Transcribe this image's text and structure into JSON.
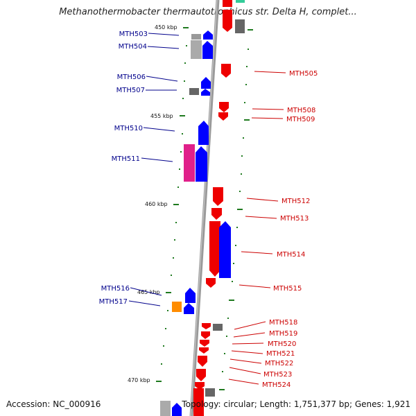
{
  "title": "Methanothermobacter thermautotrophicus str. Delta H, complet...",
  "accession": "Accession: NC_000916",
  "summary": "Topology: circular; Length: 1,751,377 bp; Genes: 1,921",
  "colors": {
    "forward": "#0000ff",
    "reverse": "#ff0000",
    "forward_label": "#00008b",
    "reverse_label": "#cc0000",
    "tick": "#1f7a1f",
    "backbone": "#808080"
  },
  "ticks": [
    "450 kbp",
    "455 kbp",
    "460 kbp",
    "465 kbp",
    "470 kbp"
  ],
  "genes_left": [
    {
      "name": "MTH503"
    },
    {
      "name": "MTH504"
    },
    {
      "name": "MTH506"
    },
    {
      "name": "MTH507"
    },
    {
      "name": "MTH510"
    },
    {
      "name": "MTH511"
    },
    {
      "name": "MTH516"
    },
    {
      "name": "MTH517"
    }
  ],
  "genes_right": [
    {
      "name": "MTH505"
    },
    {
      "name": "MTH508"
    },
    {
      "name": "MTH509"
    },
    {
      "name": "MTH512"
    },
    {
      "name": "MTH513"
    },
    {
      "name": "MTH514"
    },
    {
      "name": "MTH515"
    },
    {
      "name": "MTH518"
    },
    {
      "name": "MTH519"
    },
    {
      "name": "MTH520"
    },
    {
      "name": "MTH521"
    },
    {
      "name": "MTH522"
    },
    {
      "name": "MTH523"
    },
    {
      "name": "MTH524"
    }
  ]
}
